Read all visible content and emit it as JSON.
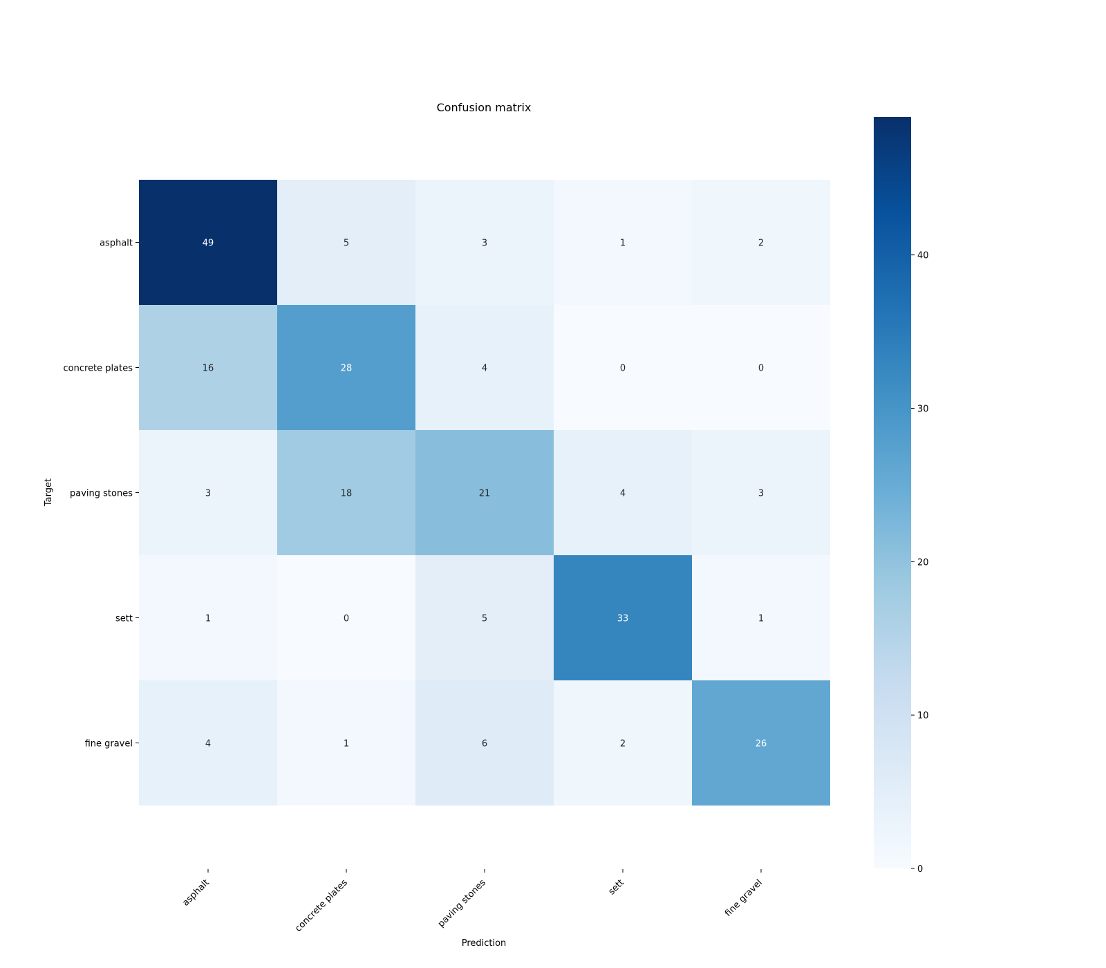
{
  "chart_data": {
    "type": "heatmap",
    "title": "Confusion matrix",
    "xlabel": "Prediction",
    "ylabel": "Target",
    "x_categories": [
      "asphalt",
      "concrete plates",
      "paving stones",
      "sett",
      "fine gravel"
    ],
    "y_categories": [
      "asphalt",
      "concrete plates",
      "paving stones",
      "sett",
      "fine gravel"
    ],
    "values": [
      [
        49,
        5,
        3,
        1,
        2
      ],
      [
        16,
        28,
        4,
        0,
        0
      ],
      [
        3,
        18,
        21,
        4,
        3
      ],
      [
        1,
        0,
        5,
        33,
        1
      ],
      [
        4,
        1,
        6,
        2,
        26
      ]
    ],
    "colormap": "Blues",
    "color_range": [
      0,
      49
    ],
    "colorbar_ticks": [
      0,
      10,
      20,
      30,
      40
    ],
    "colorbar_tick_labels": [
      "0",
      "10",
      "20",
      "30",
      "40"
    ],
    "annotation_colors": {
      "dark_cell_text": "#ffffff",
      "light_cell_text": "#262626"
    }
  }
}
